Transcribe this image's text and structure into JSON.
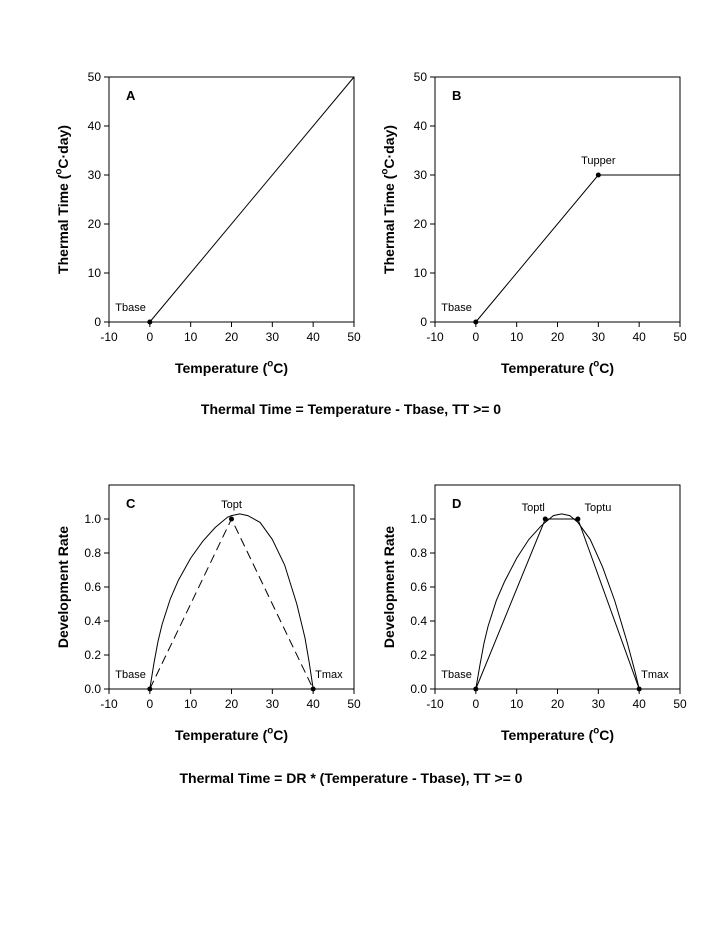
{
  "captions": {
    "top": "Thermal Time = Temperature - Tbase, TT >= 0",
    "bottom": "Thermal Time = DR * (Temperature - Tbase), TT >= 0"
  },
  "chart_data": [
    {
      "panel": "A",
      "type": "line",
      "xlabel": "Temperature (oC)",
      "ylabel": "Thermal Time (oC·day)",
      "xlim": [
        -10,
        50
      ],
      "ylim": [
        0,
        50
      ],
      "xticks": [
        -10,
        0,
        10,
        20,
        30,
        40,
        50
      ],
      "yticks": [
        0,
        10,
        20,
        30,
        40,
        50
      ],
      "series": [
        {
          "x": [
            0,
            50
          ],
          "y": [
            0,
            50
          ],
          "style": "solid"
        }
      ],
      "points": [
        {
          "label": "Tbase",
          "x": 0,
          "y": 0,
          "pos": "left"
        }
      ]
    },
    {
      "panel": "B",
      "type": "line",
      "xlabel": "Temperature (oC)",
      "ylabel": "Thermal Time (oC·day)",
      "xlim": [
        -10,
        50
      ],
      "ylim": [
        0,
        50
      ],
      "xticks": [
        -10,
        0,
        10,
        20,
        30,
        40,
        50
      ],
      "yticks": [
        0,
        10,
        20,
        30,
        40,
        50
      ],
      "series": [
        {
          "x": [
            0,
            30,
            50
          ],
          "y": [
            0,
            30,
            30
          ],
          "style": "solid"
        }
      ],
      "points": [
        {
          "label": "Tbase",
          "x": 0,
          "y": 0,
          "pos": "left"
        },
        {
          "label": "Tupper",
          "x": 30,
          "y": 30,
          "pos": "above"
        }
      ]
    },
    {
      "panel": "C",
      "type": "line",
      "xlabel": "Temperature (oC)",
      "ylabel": "Development Rate",
      "xlim": [
        -10,
        50
      ],
      "ylim": [
        0,
        1.2
      ],
      "xticks": [
        -10,
        0,
        10,
        20,
        30,
        40,
        50
      ],
      "yticks": [
        0.0,
        0.2,
        0.4,
        0.6,
        0.8,
        1.0
      ],
      "series": [
        {
          "x": [
            0,
            1,
            2,
            3,
            5,
            7,
            10,
            13,
            16,
            19,
            20,
            22,
            24,
            27,
            30,
            33,
            36,
            38,
            39,
            40
          ],
          "y": [
            0,
            0.15,
            0.28,
            0.38,
            0.53,
            0.64,
            0.77,
            0.87,
            0.95,
            1.01,
            1.02,
            1.03,
            1.02,
            0.98,
            0.88,
            0.73,
            0.5,
            0.3,
            0.16,
            0
          ],
          "style": "solid"
        },
        {
          "x": [
            0,
            20,
            40
          ],
          "y": [
            0,
            1,
            0
          ],
          "style": "dashed"
        }
      ],
      "points": [
        {
          "label": "Tbase",
          "x": 0,
          "y": 0,
          "pos": "left"
        },
        {
          "label": "Topt",
          "x": 20,
          "y": 1,
          "pos": "above"
        },
        {
          "label": "Tmax",
          "x": 40,
          "y": 0,
          "pos": "right"
        }
      ]
    },
    {
      "panel": "D",
      "type": "line",
      "xlabel": "Temperature (oC)",
      "ylabel": "Development Rate",
      "xlim": [
        -10,
        50
      ],
      "ylim": [
        0,
        1.2
      ],
      "xticks": [
        -10,
        0,
        10,
        20,
        30,
        40,
        50
      ],
      "yticks": [
        0.0,
        0.2,
        0.4,
        0.6,
        0.8,
        1.0
      ],
      "series": [
        {
          "x": [
            0,
            1,
            2,
            3,
            5,
            7,
            10,
            13,
            16,
            19,
            21,
            23,
            25,
            28,
            31,
            34,
            37,
            39,
            40
          ],
          "y": [
            0,
            0.14,
            0.27,
            0.37,
            0.52,
            0.63,
            0.77,
            0.88,
            0.96,
            1.02,
            1.03,
            1.02,
            0.98,
            0.88,
            0.72,
            0.52,
            0.28,
            0.1,
            0
          ],
          "style": "solid"
        },
        {
          "x": [
            0,
            17,
            25,
            40
          ],
          "y": [
            0,
            1,
            1,
            0
          ],
          "style": "solid"
        }
      ],
      "points": [
        {
          "label": "Tbase",
          "x": 0,
          "y": 0,
          "pos": "left"
        },
        {
          "label": "Toptl",
          "x": 17,
          "y": 1,
          "pos": "above-left"
        },
        {
          "label": "Toptu",
          "x": 25,
          "y": 1,
          "pos": "above-right"
        },
        {
          "label": "Tmax",
          "x": 40,
          "y": 0,
          "pos": "right"
        }
      ]
    }
  ]
}
